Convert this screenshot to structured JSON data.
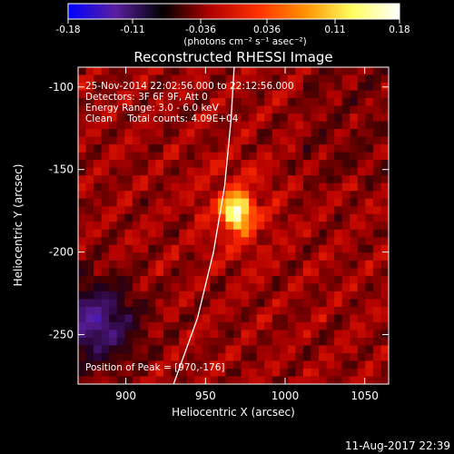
{
  "colorbar": {
    "ticks": [
      -0.18,
      -0.11,
      -0.036,
      0.036,
      0.11,
      0.18
    ],
    "tick_labels": [
      "-0.18",
      "-0.11",
      "-0.036",
      "0.036",
      "0.11",
      "0.18"
    ],
    "unit_label": "(photons cm⁻² s⁻¹ asec⁻²)",
    "range": [
      -0.18,
      0.18
    ],
    "colors": [
      "#0000ff",
      "#5a1fa0",
      "#000000",
      "#b00000",
      "#ff3000",
      "#ff9000",
      "#ffff60",
      "#ffffff"
    ]
  },
  "chart_data": {
    "type": "heatmap",
    "title": "Reconstructed RHESSI Image",
    "xlabel": "Heliocentric X (arcsec)",
    "ylabel": "Heliocentric Y (arcsec)",
    "xlim": [
      870,
      1065
    ],
    "ylim": [
      -280,
      -88
    ],
    "x_ticks": [
      900,
      950,
      1000,
      1050
    ],
    "y_ticks": [
      -100,
      -150,
      -200,
      -250
    ],
    "x_tick_labels": [
      "900",
      "950",
      "1000",
      "1050"
    ],
    "y_tick_labels": [
      "-100",
      "-150",
      "-200",
      "-250"
    ],
    "peak": {
      "x": 970,
      "y": -176
    },
    "limb_points": [
      [
        930,
        -280
      ],
      [
        945,
        -240
      ],
      [
        955,
        -200
      ],
      [
        962,
        -160
      ],
      [
        966,
        -120
      ],
      [
        968,
        -88
      ]
    ],
    "annotations": [
      "25-Nov-2014 22:02:56.000 to 22:12:56.000",
      "Detectors: 3F 6F 9F, Att 0",
      "Energy Range: 3.0 - 6.0 keV",
      "Clean     Total counts: 4.09E+04"
    ],
    "peak_label": "Position of Peak = [970,-176]"
  },
  "footer": {
    "timestamp": "11-Aug-2017 22:39"
  }
}
